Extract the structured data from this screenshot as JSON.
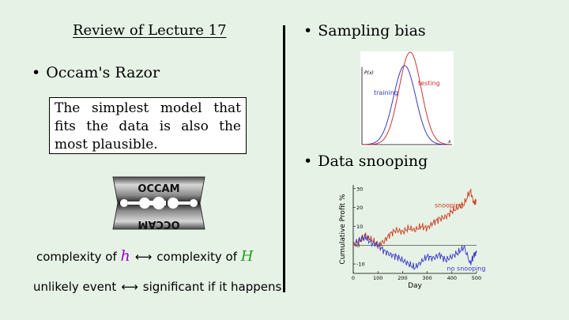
{
  "left": {
    "title": "Review of Lecture 17",
    "occam": {
      "heading": "Occam's Razor",
      "quote": "The simplest model that fits the data is also the most plausible.",
      "razor_top": "OCCAM",
      "razor_bottom": "OCCAM"
    },
    "complexity": {
      "left": "complexity of ",
      "h_symbol": "h",
      "right": "complexity of ",
      "H_symbol": "H",
      "arrow": "⟷"
    },
    "unlikely": {
      "left": "unlikely event",
      "arrow": "⟷",
      "right": "significant if it happens"
    }
  },
  "right": {
    "sampling": {
      "heading": "Sampling bias",
      "ylabel": "P(x)",
      "xlabel": "x",
      "training_label": "training",
      "testing_label": "testing",
      "training_color": "#3a3ab8",
      "testing_color": "#cc3333"
    },
    "snooping": {
      "heading": "Data snooping"
    }
  },
  "chart_data": {
    "type": "line",
    "xlabel": "Day",
    "ylabel": "Cumulative Profit %",
    "xlim": [
      0,
      500
    ],
    "ylim": [
      -15,
      32
    ],
    "x_ticks": [
      0,
      100,
      200,
      300,
      400,
      500
    ],
    "y_ticks": [
      -10,
      0,
      10,
      20,
      30
    ],
    "series": [
      {
        "name": "snooping",
        "color": "#cc3a1e",
        "x": [
          0,
          25,
          50,
          75,
          100,
          125,
          150,
          175,
          200,
          225,
          250,
          275,
          300,
          325,
          350,
          375,
          400,
          425,
          450,
          475,
          490,
          500
        ],
        "y": [
          0,
          2,
          5,
          3,
          0,
          2,
          6,
          8,
          7,
          9,
          8,
          10,
          9,
          12,
          14,
          15,
          18,
          20,
          22,
          29,
          22,
          24
        ]
      },
      {
        "name": "no snooping",
        "color": "#3a3ac8",
        "x": [
          0,
          25,
          50,
          75,
          100,
          125,
          150,
          175,
          200,
          225,
          250,
          275,
          300,
          325,
          350,
          375,
          400,
          425,
          450,
          475,
          490,
          500
        ],
        "y": [
          0,
          3,
          4,
          1,
          0,
          -3,
          -5,
          -6,
          -8,
          -10,
          -12,
          -9,
          -6,
          -7,
          -5,
          -8,
          -6,
          -4,
          -1,
          -10,
          -5,
          -4
        ]
      }
    ]
  }
}
